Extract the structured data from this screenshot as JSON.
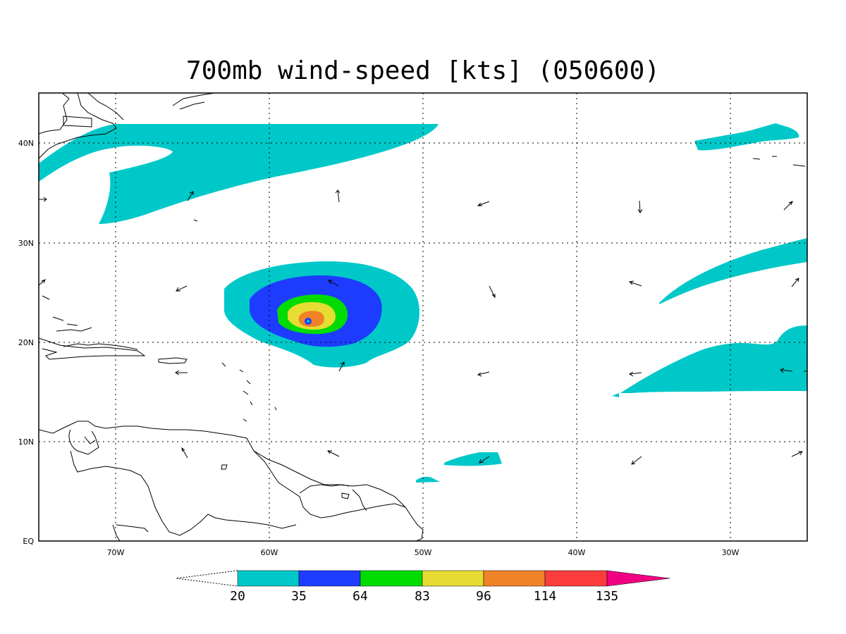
{
  "title": "700mb wind-speed [kts] (050600)",
  "lon_labels": [
    "70W",
    "60W",
    "50W",
    "40W",
    "30W"
  ],
  "lat_labels": [
    "40N",
    "30N",
    "20N",
    "10N",
    "EQ"
  ],
  "colorbar": {
    "levels": [
      "20",
      "35",
      "64",
      "83",
      "96",
      "114",
      "135"
    ],
    "colors": [
      "#00c8c8",
      "#1e3cff",
      "#00dc00",
      "#e6dc32",
      "#f08228",
      "#fa3c3c",
      "#f00082"
    ]
  },
  "chart_data": {
    "type": "heatmap",
    "title": "700mb wind-speed [kts] (050600)",
    "variable": "700mb wind-speed",
    "units": "kts",
    "timestamp": "050600",
    "xlim": [
      -75,
      -25
    ],
    "ylim": [
      0,
      45
    ],
    "grid": true,
    "x_ticks": [
      -70,
      -60,
      -50,
      -40,
      -30
    ],
    "y_ticks": [
      0,
      10,
      20,
      30,
      40
    ],
    "contour_levels": [
      20,
      35,
      64,
      83,
      96,
      114,
      135
    ],
    "features": [
      {
        "type": "cyclone",
        "center_lon": -57,
        "center_lat": 22.2,
        "max_level_kts": 114
      }
    ]
  }
}
